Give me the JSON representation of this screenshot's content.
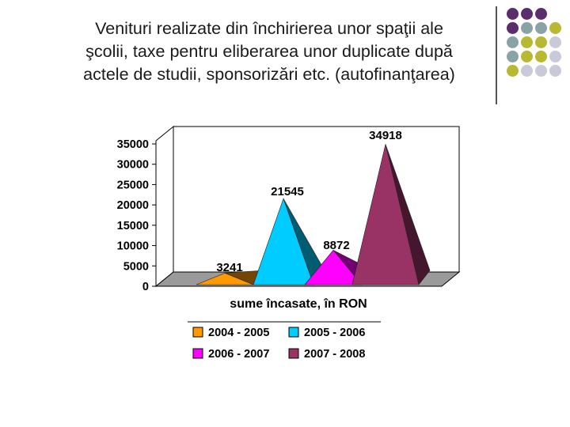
{
  "slide": {
    "title_lines": [
      "Venituri realizate din închirierea unor spaţii ale",
      "şcolii, taxe pentru eliberarea unor duplicate după",
      "actele de studii, sponsorizări etc. (autofinanţarea)"
    ]
  },
  "decoration": {
    "dot_colors": [
      "#5c2d6b",
      "#8aa3a6",
      "#b8b832",
      "#c9c9d9"
    ]
  },
  "chart_data": {
    "type": "bar",
    "style": "3d-pyramid",
    "categories": [
      "2004 - 2005",
      "2005 - 2006",
      "2006 - 2007",
      "2007 - 2008"
    ],
    "values": [
      3241,
      21545,
      8872,
      34918
    ],
    "data_labels": [
      "3241",
      "21545",
      "8872",
      "34918"
    ],
    "colors": [
      "#ff9900",
      "#00ccff",
      "#ff00ff",
      "#993366"
    ],
    "xlabel": "sume încasate, în RON",
    "ylabel": "",
    "ylim": [
      0,
      35000
    ],
    "yticks": [
      "0",
      "5000",
      "10000",
      "15000",
      "20000",
      "25000",
      "30000",
      "35000"
    ],
    "legend": {
      "position": "bottom",
      "entries": [
        "2004 - 2005",
        "2005 - 2006",
        "2006 - 2007",
        "2007 - 2008"
      ]
    },
    "grid": false
  }
}
